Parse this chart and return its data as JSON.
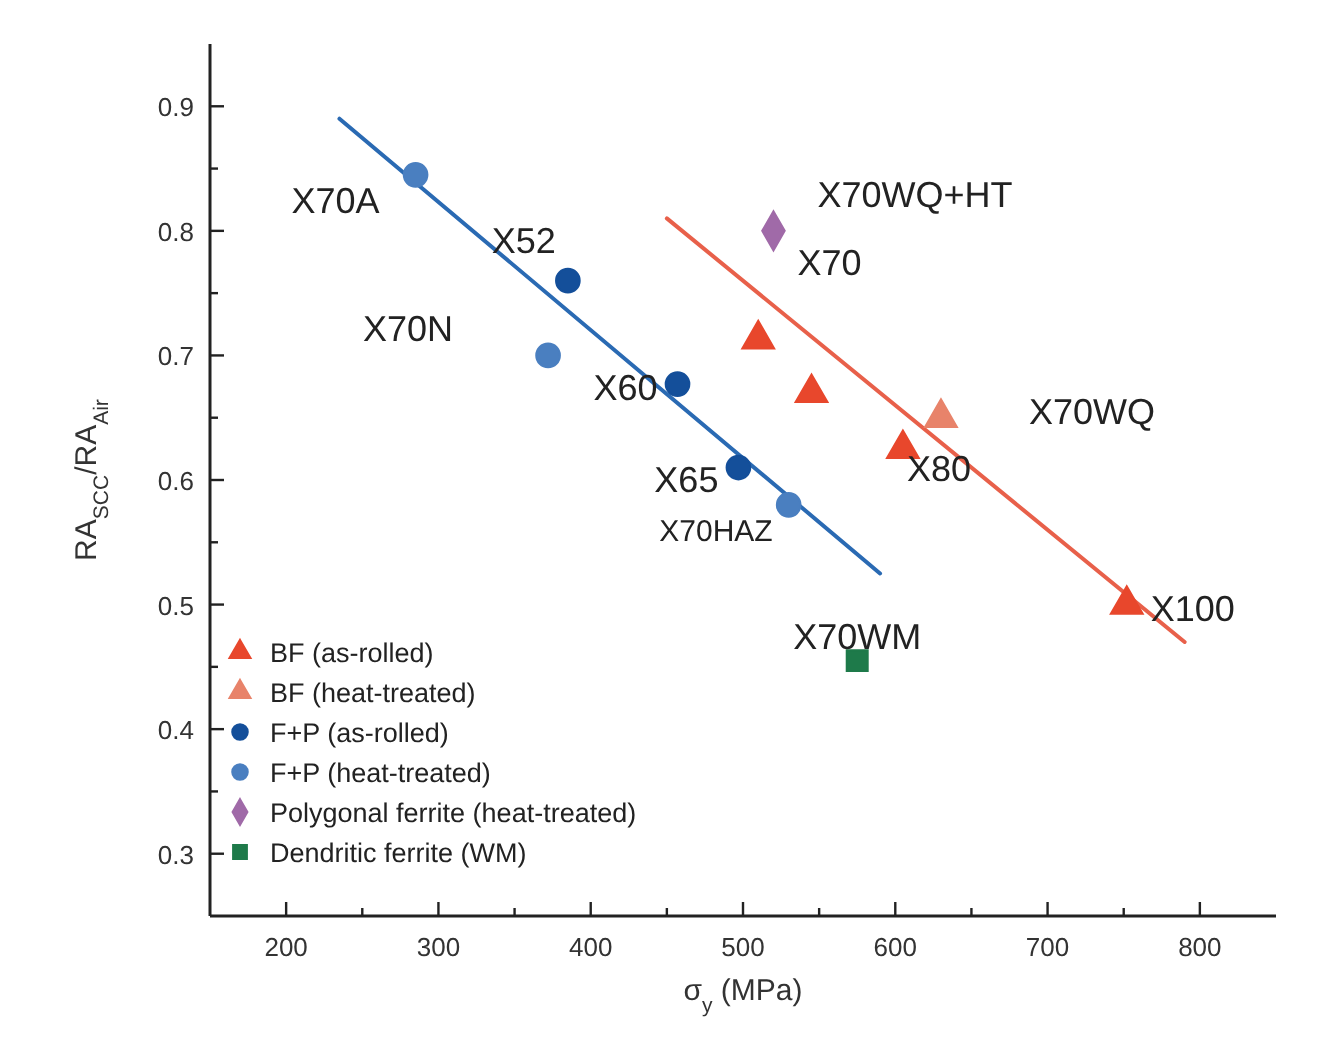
{
  "chart_data": {
    "type": "scatter",
    "xlabel": "σ$_{y}$ (MPa)",
    "ylabel": "RA$_{SCC}$/RA$_{Air}$",
    "xlim": [
      150,
      850
    ],
    "ylim": [
      0.25,
      0.95
    ],
    "xticks": [
      200,
      {
        "value": 250,
        "label": null
      },
      300,
      {
        "value": 350,
        "label": null
      },
      400,
      {
        "value": 450,
        "label": null
      },
      500,
      {
        "value": 550,
        "label": null
      },
      600,
      {
        "value": 650,
        "label": null
      },
      700,
      {
        "value": 750,
        "label": null
      },
      800
    ],
    "yticks": [
      0.3,
      {
        "value": 0.35,
        "label": null
      },
      0.4,
      {
        "value": 0.45,
        "label": null
      },
      0.5,
      {
        "value": 0.55,
        "label": null
      },
      0.6,
      {
        "value": 0.65,
        "label": null
      },
      0.7,
      {
        "value": 0.75,
        "label": null
      },
      0.8,
      {
        "value": 0.85,
        "label": null
      },
      0.9
    ],
    "grid": false,
    "legend": "bottom left",
    "series": [
      {
        "name": "BF (as-rolled)",
        "color": "#e8472c",
        "marker": "triangle",
        "x": [
          510,
          545,
          605,
          752
        ],
        "values": [
          0.713,
          0.67,
          0.625,
          0.5
        ]
      },
      {
        "name": "BF (heat-treated)",
        "color": "#e8836a",
        "marker": "triangle",
        "x": [
          630
        ],
        "values": [
          0.65
        ]
      },
      {
        "name": "F+P (as-rolled)",
        "color": "#144f9a",
        "marker": "circle",
        "x": [
          385,
          457,
          497
        ],
        "values": [
          0.76,
          0.677,
          0.61
        ]
      },
      {
        "name": "F+P (heat-treated)",
        "color": "#4a7fc0",
        "marker": "circle",
        "x": [
          285,
          372,
          530
        ],
        "values": [
          0.845,
          0.7,
          0.58
        ]
      },
      {
        "name": "Polygonal ferrite (heat-treated)",
        "color": "#a06aa8",
        "marker": "diamond",
        "x": [
          520
        ],
        "values": [
          0.8
        ]
      },
      {
        "name": "Dendritic ferrite (WM)",
        "color": "#1e7a4a",
        "marker": "square",
        "x": [
          575
        ],
        "values": [
          0.455
        ]
      },
      {
        "type": "line",
        "color": "#2a6ab3",
        "marker": "none",
        "x": [
          235,
          590
        ],
        "values": [
          0.89,
          0.525
        ]
      },
      {
        "type": "line",
        "color": "#e8604a",
        "marker": "none",
        "x": [
          450,
          790
        ],
        "values": [
          0.81,
          0.47
        ]
      }
    ],
    "annotations": [
      {
        "text": "X70A",
        "x": 285,
        "y": 0.845
      },
      {
        "text": "X52",
        "x": 385,
        "y": 0.76
      },
      {
        "text": "X70N",
        "x": 372,
        "y": 0.7
      },
      {
        "text": "X60",
        "x": 457,
        "y": 0.677
      },
      {
        "text": "X65",
        "x": 497,
        "y": 0.61
      },
      {
        "text": "X70HAZ",
        "x": 530,
        "y": 0.58
      },
      {
        "text": "X70WQ+HT",
        "x": 520,
        "y": 0.8
      },
      {
        "text": "X70",
        "x": 520,
        "y": 0.8
      },
      {
        "text": "X70WQ",
        "x": 630,
        "y": 0.65
      },
      {
        "text": "X80",
        "x": 605,
        "y": 0.625
      },
      {
        "text": "X100",
        "x": 752,
        "y": 0.5
      },
      {
        "text": "X70WM",
        "x": 575,
        "y": 0.455
      }
    ]
  }
}
